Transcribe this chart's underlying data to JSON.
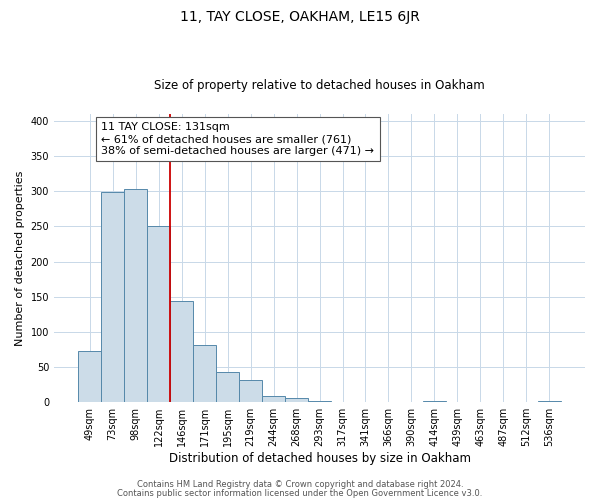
{
  "title": "11, TAY CLOSE, OAKHAM, LE15 6JR",
  "subtitle": "Size of property relative to detached houses in Oakham",
  "xlabel": "Distribution of detached houses by size in Oakham",
  "ylabel": "Number of detached properties",
  "bar_labels": [
    "49sqm",
    "73sqm",
    "98sqm",
    "122sqm",
    "146sqm",
    "171sqm",
    "195sqm",
    "219sqm",
    "244sqm",
    "268sqm",
    "293sqm",
    "317sqm",
    "341sqm",
    "366sqm",
    "390sqm",
    "414sqm",
    "439sqm",
    "463sqm",
    "487sqm",
    "512sqm",
    "536sqm"
  ],
  "bar_values": [
    73,
    299,
    304,
    250,
    144,
    82,
    43,
    32,
    9,
    6,
    2,
    1,
    0,
    0,
    0,
    2,
    0,
    0,
    0,
    1,
    2
  ],
  "bar_color": "#ccdce8",
  "bar_edge_color": "#5588aa",
  "vline_color": "#cc0000",
  "annotation_text": "11 TAY CLOSE: 131sqm\n← 61% of detached houses are smaller (761)\n38% of semi-detached houses are larger (471) →",
  "annotation_box_color": "#ffffff",
  "annotation_box_edge": "#555555",
  "ylim": [
    0,
    410
  ],
  "yticks": [
    0,
    50,
    100,
    150,
    200,
    250,
    300,
    350,
    400
  ],
  "footer1": "Contains HM Land Registry data © Crown copyright and database right 2024.",
  "footer2": "Contains public sector information licensed under the Open Government Licence v3.0.",
  "background_color": "#ffffff",
  "grid_color": "#c8d8e8",
  "title_fontsize": 10,
  "subtitle_fontsize": 8.5,
  "ylabel_fontsize": 8,
  "xlabel_fontsize": 8.5,
  "tick_fontsize": 7,
  "footer_fontsize": 6,
  "annotation_fontsize": 8
}
